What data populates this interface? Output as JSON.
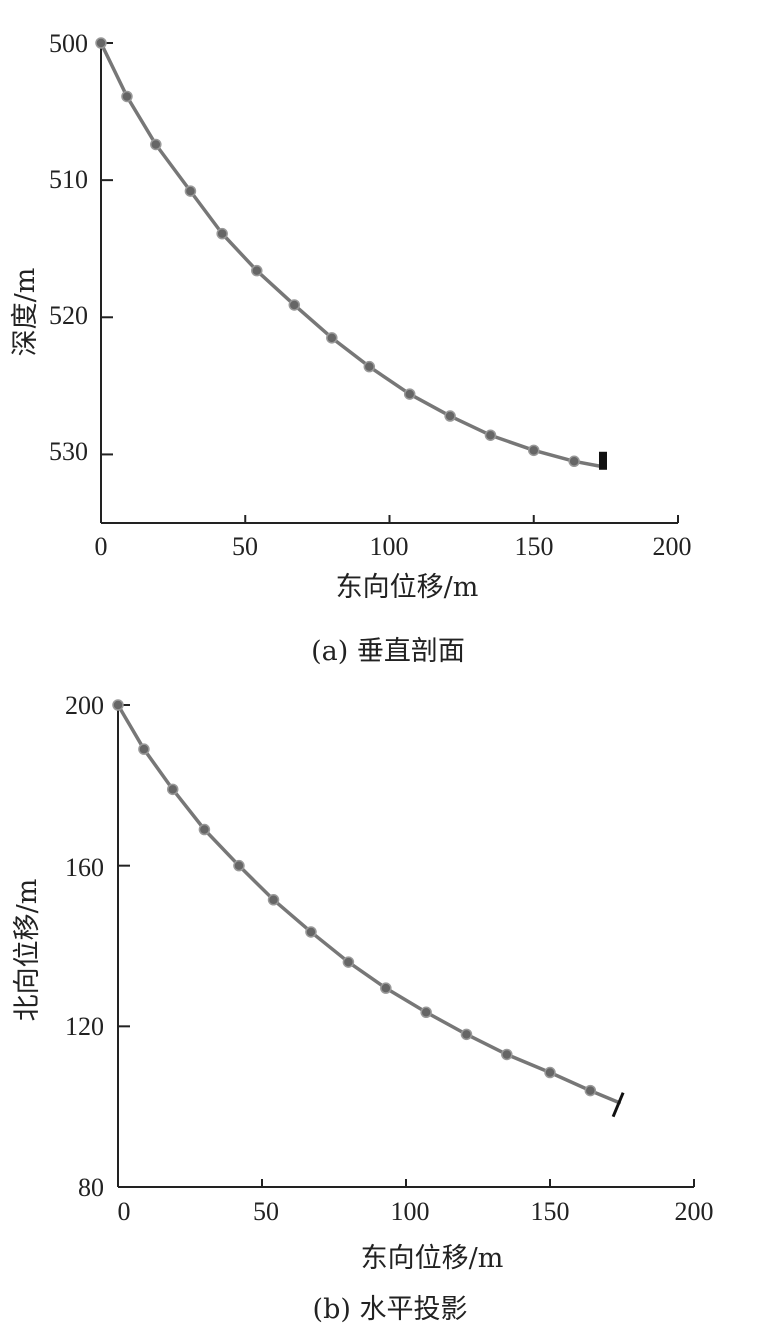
{
  "chart_data": [
    {
      "type": "line",
      "caption": "(a) 垂直剖面",
      "xlabel": "东向位移/m",
      "ylabel": "深度/m",
      "xlim": [
        0,
        200
      ],
      "ylim": [
        500,
        535
      ],
      "y_inverted": true,
      "x_ticks": [
        "0",
        "50",
        "100",
        "150",
        "200"
      ],
      "y_ticks": [
        "500",
        "510",
        "520",
        "530"
      ],
      "series": [
        {
          "x": [
            0,
            9,
            19,
            31,
            42,
            54,
            67,
            80,
            93,
            107,
            121,
            135,
            150,
            164,
            174
          ],
          "y": [
            500,
            503.9,
            507.4,
            510.8,
            513.9,
            516.6,
            519.1,
            521.5,
            523.6,
            525.6,
            527.2,
            528.6,
            529.7,
            530.5,
            530.9
          ]
        }
      ],
      "marker": "circle",
      "end_marker": "bar",
      "color": "#777777"
    },
    {
      "type": "line",
      "caption": "(b) 水平投影",
      "xlabel": "东向位移/m",
      "ylabel": "北向位移/m",
      "xlim": [
        0,
        200
      ],
      "ylim": [
        80,
        200
      ],
      "x_ticks": [
        "0",
        "50",
        "100",
        "150",
        "200"
      ],
      "y_ticks": [
        "200",
        "160",
        "120",
        "80"
      ],
      "series": [
        {
          "x": [
            0,
            9,
            19,
            30,
            42,
            54,
            67,
            80,
            93,
            107,
            121,
            135,
            150,
            164,
            174
          ],
          "y": [
            200,
            189,
            179,
            169,
            160,
            151.5,
            143.5,
            136,
            129.5,
            123.5,
            118,
            113,
            108.5,
            104,
            101
          ]
        }
      ],
      "marker": "circle",
      "end_marker": "slash",
      "color": "#777777"
    }
  ]
}
